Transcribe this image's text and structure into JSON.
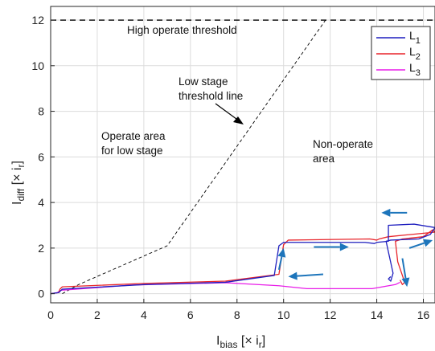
{
  "chart_data": {
    "type": "line",
    "xlabel": {
      "main": "I",
      "sub": "bias",
      "rest": " [× i",
      "sub2": "r",
      "end": "]"
    },
    "ylabel": {
      "main": "I",
      "sub": "diff",
      "rest": " [× i",
      "sub2": "r",
      "end": "]"
    },
    "xlim": [
      0,
      16.5
    ],
    "ylim": [
      -0.4,
      12.6
    ],
    "xticks": [
      0,
      2,
      4,
      6,
      8,
      10,
      12,
      14,
      16
    ],
    "yticks": [
      0,
      2,
      4,
      6,
      8,
      10,
      12
    ],
    "grid": true,
    "legend_position": "top-right",
    "legend": [
      {
        "label": "L",
        "sub": "1",
        "color": "#1f1fbf"
      },
      {
        "label": "L",
        "sub": "2",
        "color": "#e8242a"
      },
      {
        "label": "L",
        "sub": "3",
        "color": "#e81ce8"
      }
    ],
    "annotations": {
      "high_threshold": "High operate threshold",
      "low_stage_line": [
        "Low stage",
        "threshold line"
      ],
      "operate_area": [
        "Operate area",
        "for low stage"
      ],
      "non_operate_area": [
        "Non-operate",
        "area"
      ]
    },
    "threshold_lines": {
      "high": {
        "y": 12
      },
      "low_stage": {
        "x": [
          0.5,
          1.2,
          5.0,
          11.8
        ],
        "y": [
          0.0,
          0.4,
          2.1,
          12.0
        ]
      }
    },
    "series": [
      {
        "name": "L1",
        "color": "#1f1fbf",
        "x": [
          0.0,
          0.35,
          0.4,
          0.5,
          4.0,
          7.5,
          9.6,
          9.8,
          10.0,
          13.5,
          13.9,
          14.0,
          14.5,
          14.5,
          15.6,
          16.5,
          16.3,
          15.8,
          14.6,
          14.4,
          14.7,
          14.6,
          14.5,
          14.6
        ],
        "y": [
          0.0,
          0.05,
          0.1,
          0.2,
          0.4,
          0.5,
          0.8,
          2.1,
          2.25,
          2.25,
          2.2,
          2.25,
          2.3,
          3.0,
          3.05,
          2.9,
          2.6,
          2.4,
          2.35,
          2.3,
          0.9,
          0.55,
          0.65,
          0.75
        ]
      },
      {
        "name": "L2",
        "color": "#e8242a",
        "x": [
          0.0,
          0.35,
          0.4,
          0.5,
          4.0,
          7.5,
          9.8,
          10.0,
          10.2,
          13.7,
          14.0,
          14.1,
          14.5,
          16.5,
          16.4,
          16.0,
          15.1,
          14.8,
          14.9,
          15.2,
          15.1,
          15.0
        ],
        "y": [
          0.0,
          0.05,
          0.2,
          0.3,
          0.45,
          0.55,
          0.85,
          2.15,
          2.35,
          2.4,
          2.35,
          2.4,
          2.5,
          2.7,
          2.8,
          2.5,
          2.4,
          2.3,
          1.4,
          0.5,
          0.4,
          0.6
        ]
      },
      {
        "name": "L3",
        "color": "#e81ce8",
        "x": [
          0.0,
          0.3,
          0.35,
          0.45,
          3.5,
          7.5,
          9.8,
          11.0,
          13.8,
          14.8,
          15.0
        ],
        "y": [
          0.0,
          0.05,
          0.1,
          0.15,
          0.38,
          0.48,
          0.35,
          0.22,
          0.22,
          0.4,
          0.5
        ]
      }
    ],
    "arrows": [
      {
        "from": [
          9.8,
          1.05
        ],
        "to": [
          10.0,
          2.0
        ]
      },
      {
        "from": [
          11.3,
          2.05
        ],
        "to": [
          12.8,
          2.05
        ]
      },
      {
        "from": [
          11.7,
          0.85
        ],
        "to": [
          10.2,
          0.75
        ]
      },
      {
        "from": [
          15.3,
          3.55
        ],
        "to": [
          14.2,
          3.55
        ]
      },
      {
        "from": [
          15.4,
          2.0
        ],
        "to": [
          16.4,
          2.35
        ]
      },
      {
        "from": [
          15.1,
          1.55
        ],
        "to": [
          15.3,
          0.3
        ]
      }
    ]
  }
}
